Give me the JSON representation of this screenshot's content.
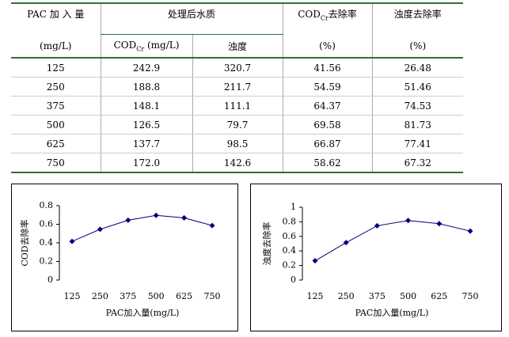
{
  "table": {
    "header_row_1": {
      "pac": "PAC 加 入 量",
      "group": "处理后水质",
      "cod_removal": [
        "COD",
        "Cr",
        "去除率"
      ],
      "turbidity_removal": "浊度去除率"
    },
    "header_row_2": {
      "pac_unit": "(mg/L)",
      "cod": [
        "COD",
        "Cr",
        " (mg/L)"
      ],
      "turbidity": "浊度",
      "cod_removal_unit": "(%)",
      "turbidity_removal_unit": "(%)"
    },
    "rows": [
      [
        "125",
        "242.9",
        "320.7",
        "41.56",
        "26.48"
      ],
      [
        "250",
        "188.8",
        "211.7",
        "54.59",
        "51.46"
      ],
      [
        "375",
        "148.1",
        "111.1",
        "64.37",
        "74.53"
      ],
      [
        "500",
        "126.5",
        "79.7",
        "69.58",
        "81.73"
      ],
      [
        "625",
        "137.7",
        "98.5",
        "66.87",
        "77.41"
      ],
      [
        "750",
        "172.0",
        "142.6",
        "58.62",
        "67.32"
      ]
    ]
  },
  "chart_data": [
    {
      "type": "line",
      "x_label": "PAC加入量(mg/L)",
      "y_label": "COD去除率",
      "categories": [
        "125",
        "250",
        "375",
        "500",
        "625",
        "750"
      ],
      "values": [
        0.4156,
        0.5459,
        0.6437,
        0.6958,
        0.6687,
        0.5862
      ],
      "color": "#000080",
      "ylim": [
        0,
        0.8
      ],
      "yticks": [
        0,
        0.2,
        0.4,
        0.6,
        0.8
      ]
    },
    {
      "type": "line",
      "x_label": "PAC加入量(mg/L)",
      "y_label": "浊度去除率",
      "categories": [
        "125",
        "250",
        "375",
        "500",
        "625",
        "750"
      ],
      "values": [
        0.2648,
        0.5146,
        0.7453,
        0.8173,
        0.7741,
        0.6732
      ],
      "color": "#000080",
      "ylim": [
        0,
        1
      ],
      "yticks": [
        0,
        0.2,
        0.4,
        0.6,
        0.8,
        1
      ]
    }
  ]
}
